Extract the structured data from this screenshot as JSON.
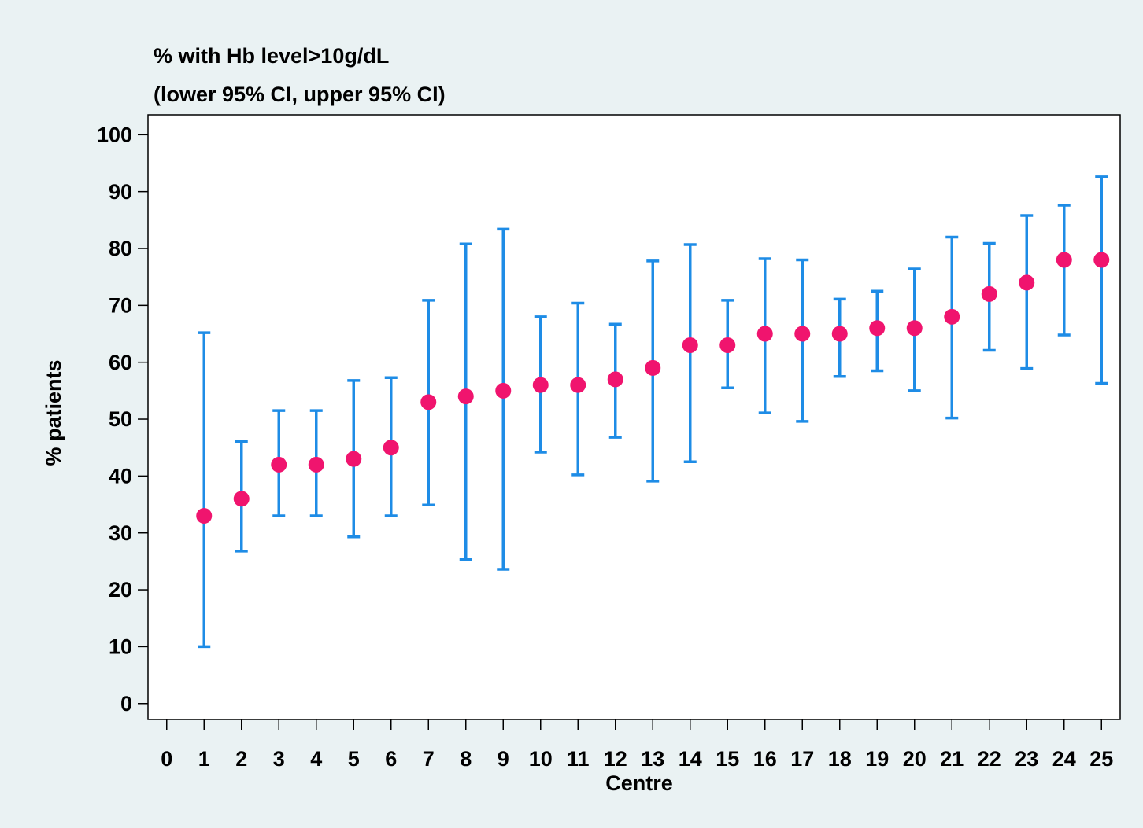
{
  "chart_data": {
    "type": "errorbar",
    "title": "% with Hb level>10g/dL",
    "subtitle": "(lower 95% CI, upper 95% CI)",
    "x_label": "Centre",
    "y_label": "% patients",
    "x": [
      1,
      2,
      3,
      4,
      5,
      6,
      7,
      8,
      9,
      10,
      11,
      12,
      13,
      14,
      15,
      16,
      17,
      18,
      19,
      20,
      21,
      22,
      23,
      24,
      25
    ],
    "series": [
      {
        "color": "#f0146e",
        "values": [
          33,
          36,
          42,
          42,
          43,
          45,
          53,
          54,
          55,
          56,
          56,
          57,
          59,
          63,
          63,
          65,
          65,
          65,
          66,
          66,
          68,
          72,
          74,
          78,
          78
        ],
        "lower": [
          10,
          26.8,
          33,
          33,
          29.3,
          33,
          34.9,
          25.3,
          23.6,
          44.2,
          40.2,
          46.8,
          39.1,
          42.5,
          55.5,
          51.1,
          49.6,
          57.5,
          58.5,
          55,
          50.2,
          62.1,
          58.9,
          64.8,
          56.3
        ],
        "upper": [
          65.2,
          46.1,
          51.5,
          51.5,
          56.8,
          57.3,
          70.9,
          80.8,
          83.4,
          68,
          70.4,
          66.7,
          77.8,
          80.7,
          70.9,
          78.2,
          78,
          71.1,
          72.5,
          76.4,
          82,
          80.9,
          85.8,
          87.6,
          92.6
        ],
        "error_color": "#1e8ce6"
      }
    ],
    "xlim": [
      -0.5,
      25.5
    ],
    "ylim": [
      -2.8,
      103.5
    ],
    "xticks": [
      0,
      1,
      2,
      3,
      4,
      5,
      6,
      7,
      8,
      9,
      10,
      11,
      12,
      13,
      14,
      15,
      16,
      17,
      18,
      19,
      20,
      21,
      22,
      23,
      24,
      25
    ],
    "yticks": [
      0,
      10,
      20,
      30,
      40,
      50,
      60,
      70,
      80,
      90,
      100
    ]
  }
}
